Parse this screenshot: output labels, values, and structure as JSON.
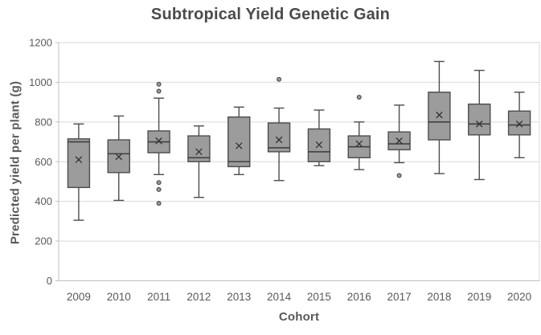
{
  "chart_data": {
    "type": "box",
    "title": "Subtropical Yield Genetic Gain",
    "xlabel": "Cohort",
    "ylabel": "Predicted yield per plant (g)",
    "ylim": [
      0,
      1200
    ],
    "y_ticks": [
      0,
      200,
      400,
      600,
      800,
      1000,
      1200
    ],
    "grid": "horizontal",
    "legend": "none",
    "categories": [
      "2009",
      "2010",
      "2011",
      "2012",
      "2013",
      "2014",
      "2015",
      "2016",
      "2017",
      "2018",
      "2019",
      "2020"
    ],
    "series": [
      {
        "cohort": "2009",
        "whisker_low": 305,
        "q1": 470,
        "median": 700,
        "q3": 715,
        "whisker_high": 790,
        "mean": 610,
        "outliers": []
      },
      {
        "cohort": "2010",
        "whisker_low": 405,
        "q1": 545,
        "median": 640,
        "q3": 710,
        "whisker_high": 830,
        "mean": 625,
        "outliers": []
      },
      {
        "cohort": "2011",
        "whisker_low": 535,
        "q1": 645,
        "median": 700,
        "q3": 755,
        "whisker_high": 920,
        "mean": 705,
        "outliers": [
          990,
          955,
          495,
          460,
          390
        ]
      },
      {
        "cohort": "2012",
        "whisker_low": 420,
        "q1": 600,
        "median": 620,
        "q3": 730,
        "whisker_high": 780,
        "mean": 650,
        "outliers": []
      },
      {
        "cohort": "2013",
        "whisker_low": 535,
        "q1": 575,
        "median": 600,
        "q3": 825,
        "whisker_high": 875,
        "mean": 680,
        "outliers": []
      },
      {
        "cohort": "2014",
        "whisker_low": 505,
        "q1": 650,
        "median": 670,
        "q3": 795,
        "whisker_high": 870,
        "mean": 710,
        "outliers": [
          1015
        ]
      },
      {
        "cohort": "2015",
        "whisker_low": 580,
        "q1": 600,
        "median": 650,
        "q3": 765,
        "whisker_high": 860,
        "mean": 685,
        "outliers": []
      },
      {
        "cohort": "2016",
        "whisker_low": 560,
        "q1": 620,
        "median": 675,
        "q3": 730,
        "whisker_high": 800,
        "mean": 690,
        "outliers": [
          925
        ]
      },
      {
        "cohort": "2017",
        "whisker_low": 595,
        "q1": 660,
        "median": 690,
        "q3": 750,
        "whisker_high": 885,
        "mean": 705,
        "outliers": [
          530
        ]
      },
      {
        "cohort": "2018",
        "whisker_low": 540,
        "q1": 710,
        "median": 800,
        "q3": 950,
        "whisker_high": 1105,
        "mean": 835,
        "outliers": []
      },
      {
        "cohort": "2019",
        "whisker_low": 510,
        "q1": 735,
        "median": 790,
        "q3": 890,
        "whisker_high": 1060,
        "mean": 790,
        "outliers": []
      },
      {
        "cohort": "2020",
        "whisker_low": 620,
        "q1": 735,
        "median": 785,
        "q3": 855,
        "whisker_high": 950,
        "mean": 790,
        "outliers": []
      }
    ],
    "colors": {
      "background": "#ffffff",
      "box_fill": "#9c9c9c",
      "box_stroke": "#4d4d4d",
      "median_stroke": "#404040",
      "mean_marker": "#333333",
      "outlier_stroke": "#4d4d4d",
      "grid": "#d9d9d9",
      "axis_line": "#c0c0c0",
      "tick_text": "#595959",
      "title_text": "#4a4a4a"
    }
  }
}
